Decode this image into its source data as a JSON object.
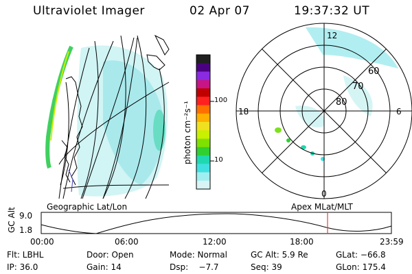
{
  "header": {
    "instrument": "Ultraviolet Imager",
    "date": "02 Apr 07",
    "time": "19:37:32 UT"
  },
  "left_panel": {
    "label": "Geographic Lat/Lon"
  },
  "right_panel": {
    "label": "Apex MLat/MLT",
    "mlt_labels": {
      "top": "12",
      "left": "18",
      "right": "6",
      "bottom": "0"
    },
    "mlat_labels": [
      "60",
      "70",
      "80"
    ]
  },
  "colorbar": {
    "title": "photon cm⁻²s⁻¹",
    "ticks": [
      "100",
      "10"
    ],
    "colors": [
      "#202020",
      "#4b0082",
      "#8a2be2",
      "#c71585",
      "#c00000",
      "#ff2020",
      "#ff7000",
      "#ffb000",
      "#f0e020",
      "#c8f000",
      "#80e000",
      "#30d030",
      "#20d8b0",
      "#40e0e0",
      "#a0eef0",
      "#d8f4f4"
    ]
  },
  "timeline": {
    "y_label": "GC Alt",
    "y_ticks": [
      "9.0",
      "1.8"
    ],
    "x_ticks": [
      "00:00",
      "06:00",
      "12:00",
      "18:00",
      "23:59"
    ],
    "current_time_fraction": 0.8177,
    "marker_color": "#e04040"
  },
  "status": {
    "filter": "Flt: LBHL",
    "door": "Door: Open",
    "mode": "Mode: Normal",
    "gc_alt": "GC Alt: 5.9 Re",
    "glat": "GLat: −66.8",
    "ip": "IP: 36.0",
    "gain": "Gain: 14",
    "dsp": "Dsp:    −7.7",
    "seq": "Seq: 39",
    "glon": "GLon: 175.4"
  }
}
